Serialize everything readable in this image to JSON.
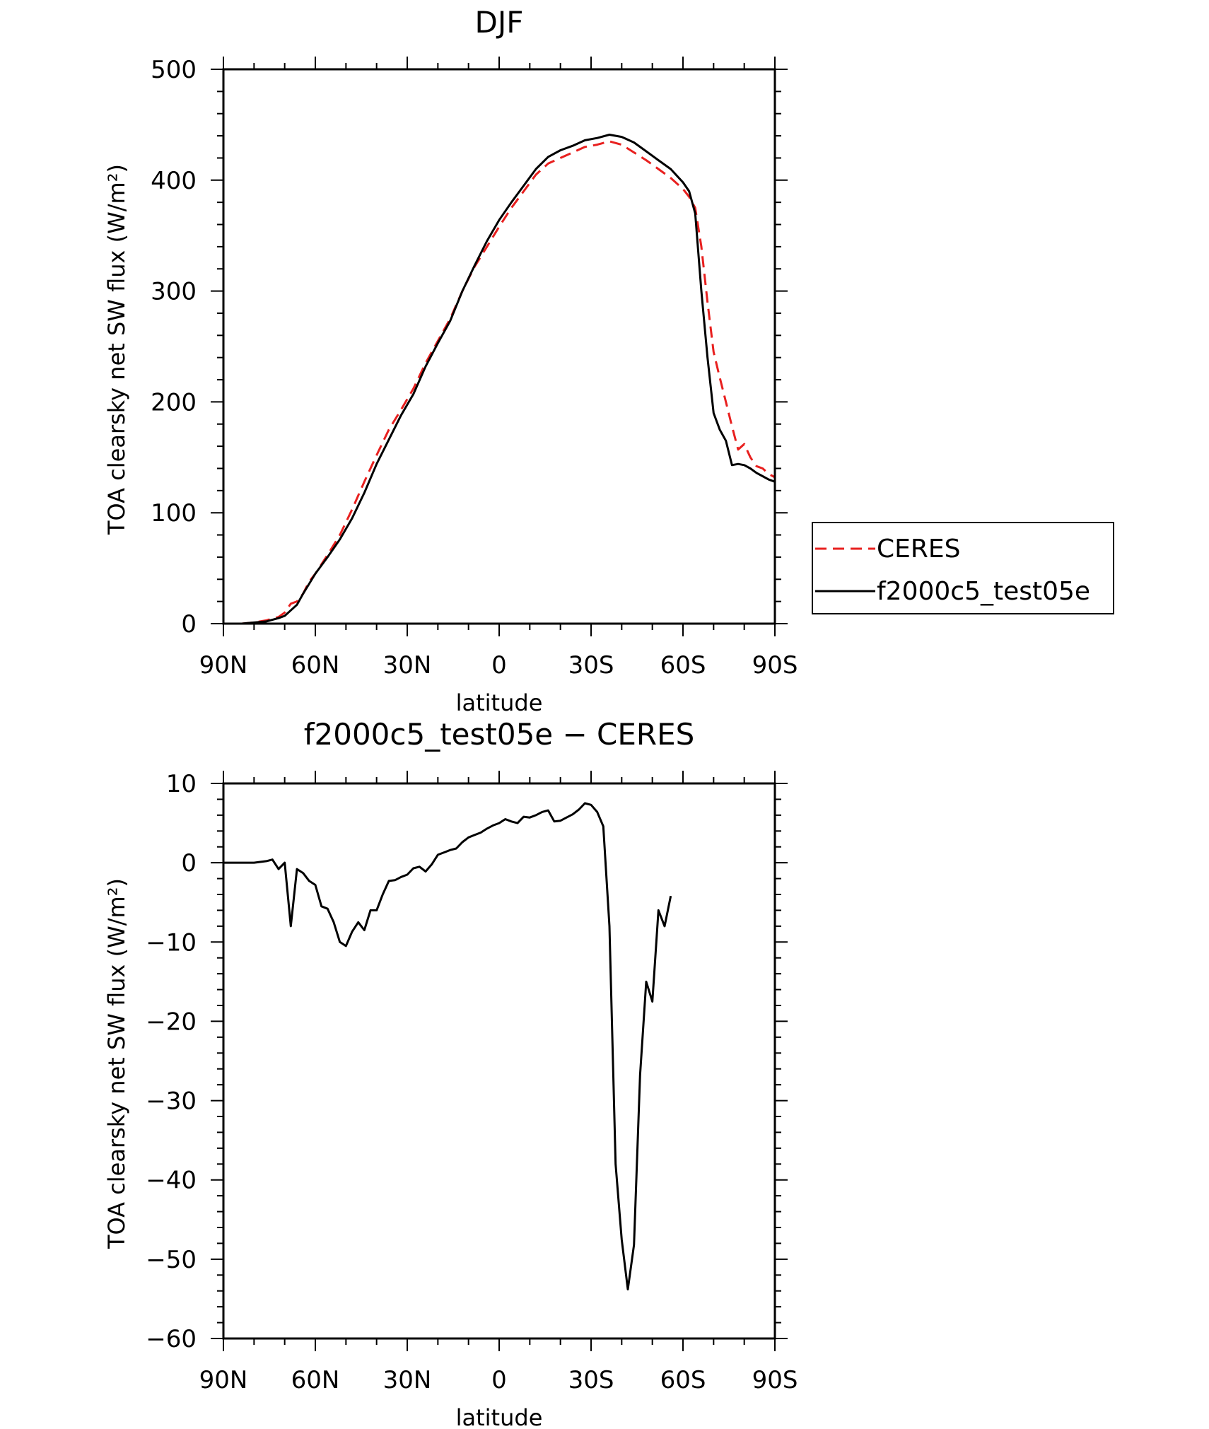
{
  "chart_data": [
    {
      "type": "line",
      "title": "DJF",
      "xlabel": "latitude",
      "ylabel": "TOA clearsky net SW flux (W/m²)",
      "xlim": [
        90,
        -90
      ],
      "ylim": [
        0,
        500
      ],
      "xticks": [
        {
          "value": 90,
          "label": "90N"
        },
        {
          "value": 60,
          "label": "60N"
        },
        {
          "value": 30,
          "label": "30N"
        },
        {
          "value": 0,
          "label": "0"
        },
        {
          "value": -30,
          "label": "30S"
        },
        {
          "value": -60,
          "label": "60S"
        },
        {
          "value": -90,
          "label": "90S"
        }
      ],
      "yticks": [
        {
          "value": 0,
          "label": "0"
        },
        {
          "value": 100,
          "label": "100"
        },
        {
          "value": 200,
          "label": "200"
        },
        {
          "value": 300,
          "label": "300"
        },
        {
          "value": 400,
          "label": "400"
        },
        {
          "value": 500,
          "label": "500"
        }
      ],
      "legend_position": "right",
      "series": [
        {
          "name": "CERES",
          "color": "#e8201f",
          "dash": "dashed",
          "points": [
            [
              90,
              0
            ],
            [
              84,
              0
            ],
            [
              80,
              1
            ],
            [
              76,
              3
            ],
            [
              72,
              6
            ],
            [
              70,
              10
            ],
            [
              68,
              18
            ],
            [
              66,
              20
            ],
            [
              64,
              27
            ],
            [
              62,
              38
            ],
            [
              60,
              45
            ],
            [
              56,
              62
            ],
            [
              52,
              80
            ],
            [
              48,
              103
            ],
            [
              44,
              128
            ],
            [
              40,
              152
            ],
            [
              36,
              175
            ],
            [
              32,
              193
            ],
            [
              28,
              212
            ],
            [
              24,
              235
            ],
            [
              20,
              255
            ],
            [
              16,
              275
            ],
            [
              12,
              300
            ],
            [
              8,
              322
            ],
            [
              4,
              340
            ],
            [
              0,
              358
            ],
            [
              -4,
              375
            ],
            [
              -8,
              390
            ],
            [
              -12,
              405
            ],
            [
              -16,
              415
            ],
            [
              -20,
              420
            ],
            [
              -24,
              425
            ],
            [
              -28,
              430
            ],
            [
              -32,
              432
            ],
            [
              -36,
              435
            ],
            [
              -40,
              432
            ],
            [
              -44,
              425
            ],
            [
              -48,
              418
            ],
            [
              -52,
              410
            ],
            [
              -56,
              402
            ],
            [
              -60,
              392
            ],
            [
              -62,
              385
            ],
            [
              -64,
              375
            ],
            [
              -66,
              340
            ],
            [
              -68,
              290
            ],
            [
              -70,
              245
            ],
            [
              -72,
              222
            ],
            [
              -74,
              200
            ],
            [
              -76,
              178
            ],
            [
              -78,
              157
            ],
            [
              -80,
              162
            ],
            [
              -82,
              150
            ],
            [
              -84,
              142
            ],
            [
              -86,
              140
            ],
            [
              -88,
              135
            ],
            [
              -90,
              132
            ]
          ]
        },
        {
          "name": "f2000c5_test05e",
          "color": "#000000",
          "dash": "solid",
          "points": [
            [
              90,
              0
            ],
            [
              84,
              0
            ],
            [
              80,
              1
            ],
            [
              76,
              2
            ],
            [
              72,
              5
            ],
            [
              70,
              7
            ],
            [
              68,
              12
            ],
            [
              66,
              17
            ],
            [
              64,
              27
            ],
            [
              62,
              36
            ],
            [
              60,
              45
            ],
            [
              56,
              60
            ],
            [
              52,
              76
            ],
            [
              48,
              95
            ],
            [
              44,
              118
            ],
            [
              40,
              144
            ],
            [
              36,
              166
            ],
            [
              32,
              188
            ],
            [
              28,
              207
            ],
            [
              24,
              232
            ],
            [
              20,
              253
            ],
            [
              16,
              273
            ],
            [
              12,
              300
            ],
            [
              8,
              323
            ],
            [
              4,
              345
            ],
            [
              0,
              364
            ],
            [
              -4,
              380
            ],
            [
              -8,
              395
            ],
            [
              -12,
              410
            ],
            [
              -16,
              421
            ],
            [
              -20,
              427
            ],
            [
              -24,
              431
            ],
            [
              -28,
              436
            ],
            [
              -32,
              438
            ],
            [
              -36,
              441
            ],
            [
              -40,
              439
            ],
            [
              -44,
              434
            ],
            [
              -48,
              426
            ],
            [
              -52,
              418
            ],
            [
              -56,
              410
            ],
            [
              -60,
              398
            ],
            [
              -62,
              390
            ],
            [
              -64,
              370
            ],
            [
              -66,
              300
            ],
            [
              -68,
              240
            ],
            [
              -70,
              190
            ],
            [
              -72,
              175
            ],
            [
              -74,
              165
            ],
            [
              -76,
              143
            ],
            [
              -78,
              144
            ],
            [
              -80,
              143
            ],
            [
              -82,
              140
            ],
            [
              -84,
              136
            ],
            [
              -86,
              133
            ],
            [
              -88,
              130
            ],
            [
              -90,
              128
            ]
          ]
        }
      ]
    },
    {
      "type": "line",
      "title": "f2000c5_test05e − CERES",
      "xlabel": "latitude",
      "ylabel": "TOA clearsky net SW flux (W/m²)",
      "xlim": [
        90,
        -90
      ],
      "ylim": [
        -60,
        10
      ],
      "xticks": [
        {
          "value": 90,
          "label": "90N"
        },
        {
          "value": 60,
          "label": "60N"
        },
        {
          "value": 30,
          "label": "30N"
        },
        {
          "value": 0,
          "label": "0"
        },
        {
          "value": -30,
          "label": "30S"
        },
        {
          "value": -60,
          "label": "60S"
        },
        {
          "value": -90,
          "label": "90S"
        }
      ],
      "yticks": [
        {
          "value": 10,
          "label": "10"
        },
        {
          "value": 0,
          "label": "0"
        },
        {
          "value": -10,
          "label": "−10"
        },
        {
          "value": -20,
          "label": "−20"
        },
        {
          "value": -30,
          "label": "−30"
        },
        {
          "value": -40,
          "label": "−40"
        },
        {
          "value": -50,
          "label": "−50"
        },
        {
          "value": -60,
          "label": "−60"
        }
      ],
      "series": [
        {
          "color": "#000000",
          "dash": "solid",
          "points": [
            [
              90,
              0
            ],
            [
              84,
              0
            ],
            [
              80,
              0
            ],
            [
              76,
              0.2
            ],
            [
              74,
              0.4
            ],
            [
              72,
              -0.8
            ],
            [
              70,
              0
            ],
            [
              68,
              -8
            ],
            [
              66,
              -0.8
            ],
            [
              64,
              -1.3
            ],
            [
              62,
              -2.3
            ],
            [
              60,
              -2.8
            ],
            [
              58,
              -5.5
            ],
            [
              56,
              -5.8
            ],
            [
              54,
              -7.5
            ],
            [
              52,
              -10
            ],
            [
              50,
              -10.5
            ],
            [
              48,
              -8.7
            ],
            [
              46,
              -7.5
            ],
            [
              44,
              -8.5
            ],
            [
              42,
              -6
            ],
            [
              40,
              -6
            ],
            [
              38,
              -4
            ],
            [
              36,
              -2.3
            ],
            [
              34,
              -2.2
            ],
            [
              32,
              -1.8
            ],
            [
              30,
              -1.5
            ],
            [
              28,
              -0.7
            ],
            [
              26,
              -0.5
            ],
            [
              24,
              -1.1
            ],
            [
              22,
              -0.2
            ],
            [
              20,
              1
            ],
            [
              18,
              1.3
            ],
            [
              16,
              1.6
            ],
            [
              14,
              1.8
            ],
            [
              12,
              2.6
            ],
            [
              10,
              3.2
            ],
            [
              8,
              3.5
            ],
            [
              6,
              3.8
            ],
            [
              4,
              4.3
            ],
            [
              2,
              4.7
            ],
            [
              0,
              5
            ],
            [
              -2,
              5.5
            ],
            [
              -4,
              5.2
            ],
            [
              -6,
              5
            ],
            [
              -8,
              5.8
            ],
            [
              -10,
              5.7
            ],
            [
              -12,
              6
            ],
            [
              -14,
              6.4
            ],
            [
              -16,
              6.6
            ],
            [
              -18,
              5.2
            ],
            [
              -20,
              5.3
            ],
            [
              -22,
              5.7
            ],
            [
              -24,
              6.1
            ],
            [
              -26,
              6.7
            ],
            [
              -28,
              7.5
            ],
            [
              -30,
              7.3
            ],
            [
              -32,
              6.4
            ],
            [
              -34,
              4.6
            ],
            [
              -36,
              -8
            ],
            [
              -38,
              -38
            ],
            [
              -40,
              -47.5
            ],
            [
              -42,
              -53.8
            ],
            [
              -44,
              -48.2
            ],
            [
              -46,
              -26.8
            ],
            [
              -48,
              -15
            ],
            [
              -50,
              -17.5
            ],
            [
              -52,
              -6
            ],
            [
              -54,
              -8
            ],
            [
              -56,
              -4.2
            ]
          ]
        }
      ]
    }
  ]
}
